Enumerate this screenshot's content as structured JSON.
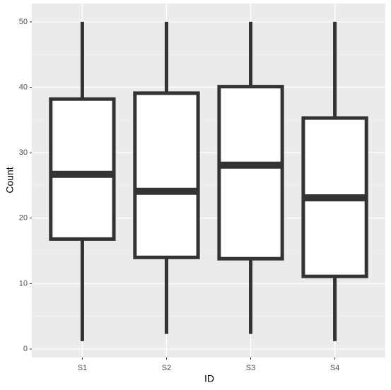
{
  "chart_data": {
    "type": "box",
    "x_label": "ID",
    "y_label": "Count",
    "categories": [
      "S1",
      "S2",
      "S3",
      "S4"
    ],
    "min": [
      1.2,
      2.3,
      2.3,
      1.2
    ],
    "q1": [
      16.8,
      14.0,
      13.8,
      11.1
    ],
    "median": [
      26.7,
      24.1,
      28.1,
      23.1
    ],
    "q3": [
      38.2,
      39.1,
      40.1,
      35.3
    ],
    "max": [
      50,
      50,
      50,
      50
    ],
    "color": "#333333",
    "fill": "#ffffff",
    "ylim": [
      -1.3,
      52.8
    ],
    "yticks": [
      0,
      10,
      20,
      30,
      40,
      50
    ],
    "minor_yticks": [
      5,
      15,
      25,
      35,
      45
    ],
    "grid": true
  }
}
